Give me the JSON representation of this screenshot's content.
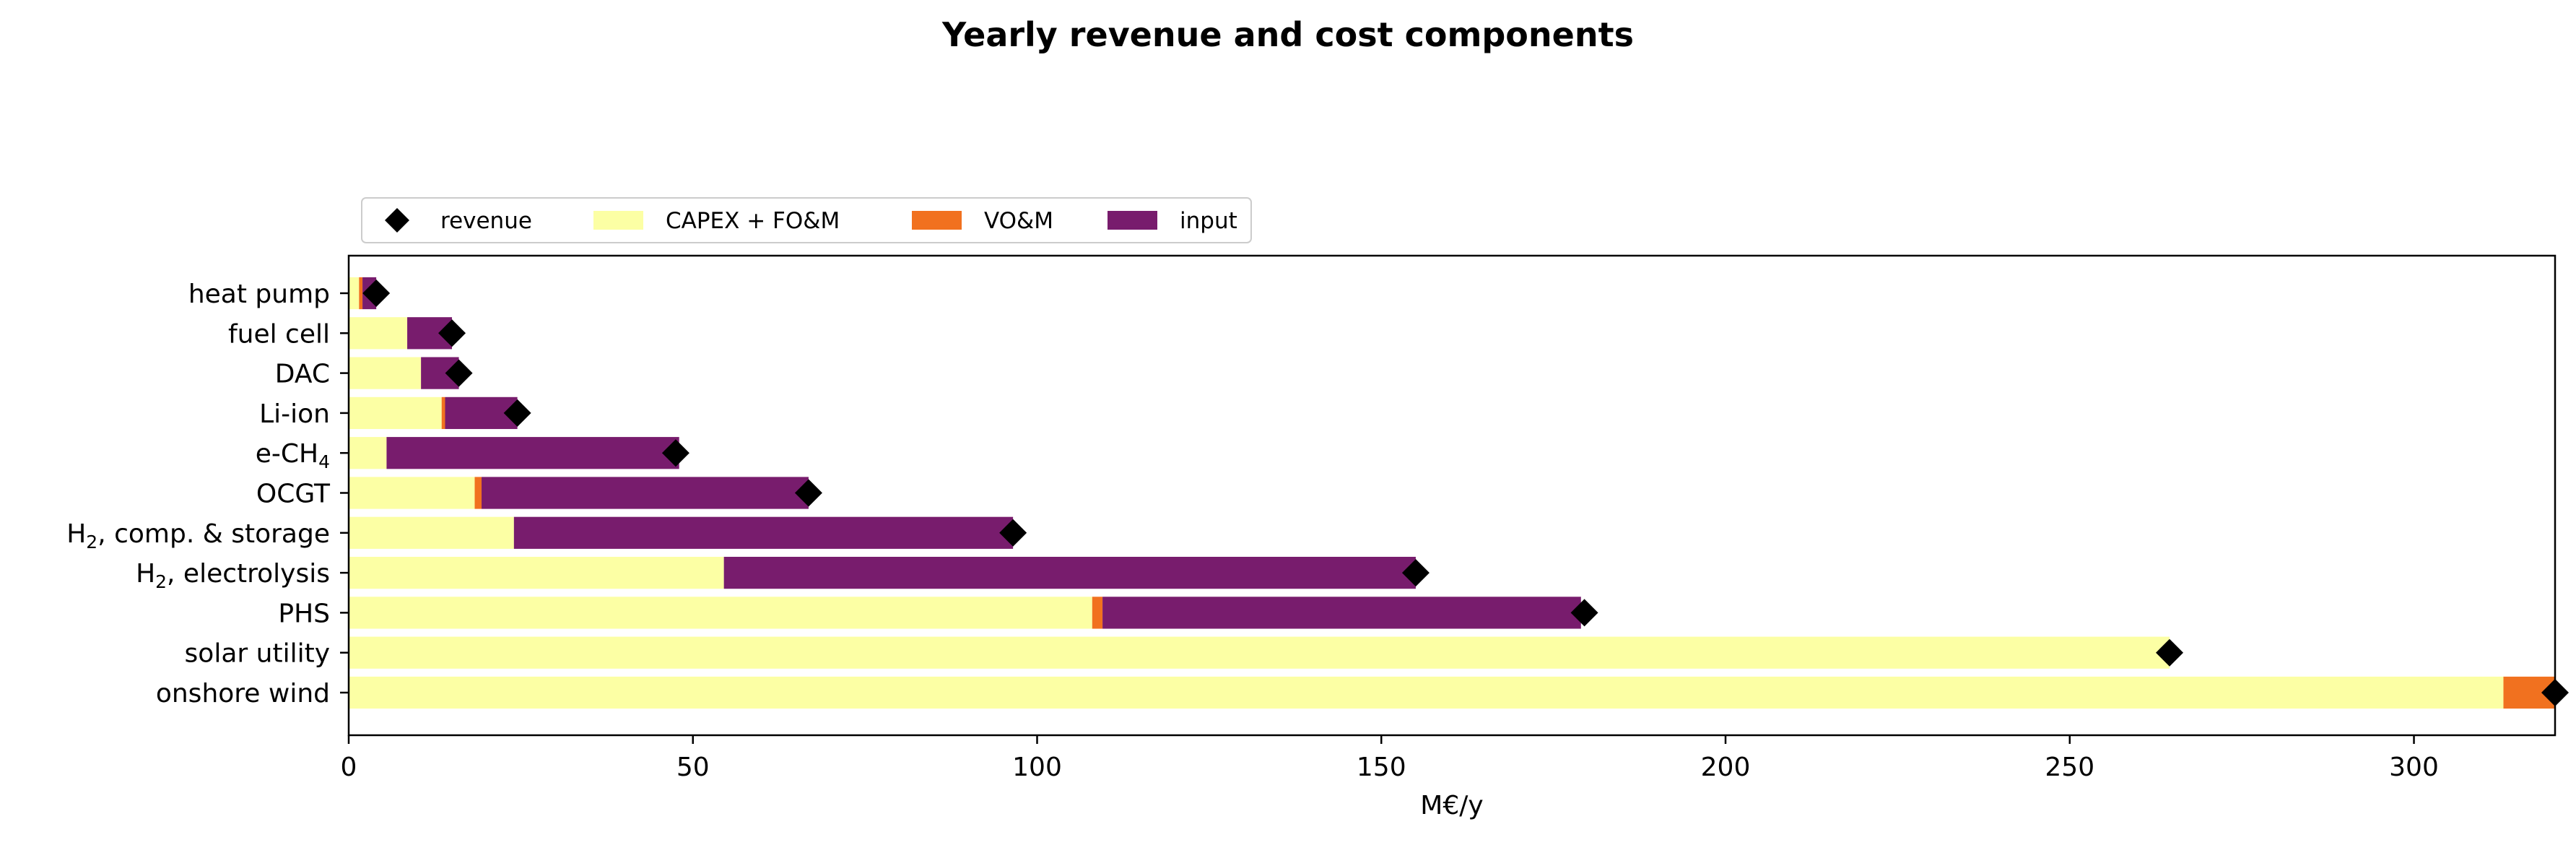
{
  "chart_data": {
    "type": "bar",
    "orientation": "horizontal",
    "stacked": true,
    "title": "Yearly revenue and cost components",
    "xlabel": "M€/y",
    "ylabel": "",
    "xlim": [
      0,
      320.5
    ],
    "xticks": [
      0,
      50,
      100,
      150,
      200,
      250,
      300
    ],
    "grid": false,
    "legend": {
      "placement": "top-left, above plot",
      "columns": 4
    },
    "categories": [
      "heat pump",
      "fuel cell",
      "DAC",
      "Li-ion",
      "e-CH4",
      "OCGT",
      "H2, comp. & storage",
      "H2, electrolysis",
      "PHS",
      "solar utility",
      "onshore wind"
    ],
    "category_labels": [
      {
        "main": "heat pump"
      },
      {
        "main": "fuel cell"
      },
      {
        "main": "DAC"
      },
      {
        "main": "Li-ion"
      },
      {
        "main": "e-CH",
        "sub": "4",
        "post": ""
      },
      {
        "main": "OCGT"
      },
      {
        "main": "H",
        "sub": "2",
        "post": ", comp. & storage"
      },
      {
        "main": "H",
        "sub": "2",
        "post": ", electrolysis"
      },
      {
        "main": "PHS"
      },
      {
        "main": "solar utility"
      },
      {
        "main": "onshore wind"
      }
    ],
    "series": [
      {
        "name": "CAPEX + FO&M",
        "color": "#fcffa4",
        "values": [
          1.5,
          8.5,
          10.5,
          13.5,
          5.5,
          18.3,
          24,
          54.5,
          108,
          264.5,
          313
        ]
      },
      {
        "name": "VO&M",
        "color": "#f1711f",
        "values": [
          0.5,
          0,
          0,
          0.5,
          0,
          1,
          0,
          0,
          1.5,
          0,
          7.5
        ]
      },
      {
        "name": "input",
        "color": "#781c6d",
        "values": [
          2,
          6.5,
          5.5,
          10.5,
          42.5,
          47.5,
          72.5,
          100.5,
          69.5,
          0,
          0
        ]
      }
    ],
    "revenue": {
      "name": "revenue",
      "color": "#000000",
      "marker": "diamond",
      "values": [
        4,
        15,
        16,
        24.5,
        47.5,
        66.8,
        96.5,
        155,
        179.5,
        264.5,
        320.5
      ]
    }
  }
}
